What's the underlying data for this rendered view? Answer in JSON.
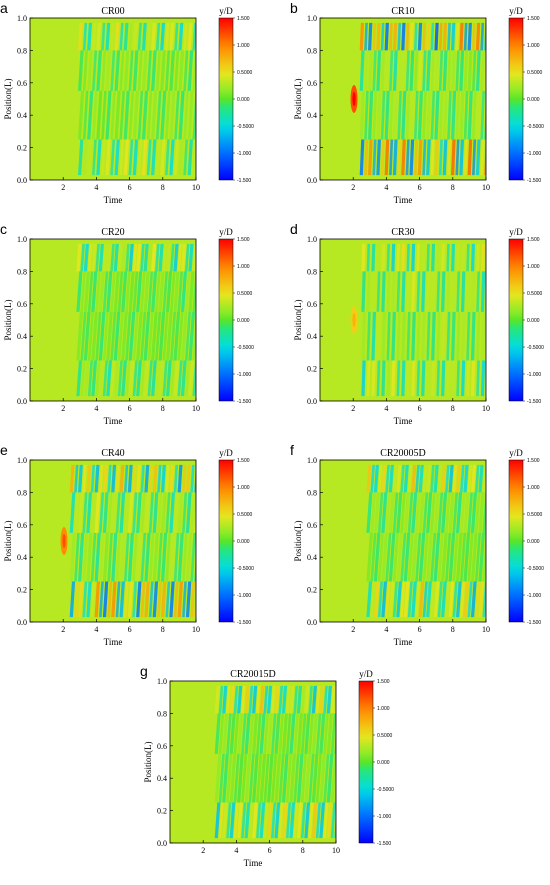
{
  "chart_data": [
    {
      "type": "heatmap",
      "panel_label": "a",
      "title": "CR00",
      "xlabel": "Time",
      "ylabel": "Position(L)",
      "x_ticks": [
        "2",
        "4",
        "6",
        "8",
        "10"
      ],
      "y_ticks": [
        "0.0",
        "0.2",
        "0.4",
        "0.6",
        "0.8",
        "1.0"
      ],
      "xlim": [
        0,
        10
      ],
      "ylim": [
        0,
        1
      ],
      "colorbar": {
        "title": "y/D",
        "ticks": [
          "1.500",
          "1.000",
          "0.5000",
          "0.000",
          "-0.5000",
          "-1.000",
          "-1.500"
        ],
        "range": [
          -1.5,
          1.5
        ]
      },
      "pattern": {
        "onset": 3.0,
        "period": 0.55,
        "amp_top": 0.55,
        "amp_bottom": 0.45,
        "amp_mid": 0.15,
        "slant": 0.6,
        "stripes": 16,
        "early_blob": 0
      }
    },
    {
      "type": "heatmap",
      "panel_label": "b",
      "title": "CR10",
      "xlabel": "Time",
      "ylabel": "Position(L)",
      "x_ticks": [
        "2",
        "4",
        "6",
        "8",
        "10"
      ],
      "y_ticks": [
        "0.0",
        "0.2",
        "0.4",
        "0.6",
        "0.8",
        "1.0"
      ],
      "xlim": [
        0,
        10
      ],
      "ylim": [
        0,
        1
      ],
      "colorbar": {
        "title": "y/D",
        "ticks": [
          "1.500",
          "1.000",
          "0.5000",
          "0.000",
          "-0.5000",
          "-1.000",
          "-1.500"
        ],
        "range": [
          -1.5,
          1.5
        ]
      },
      "pattern": {
        "onset": 2.5,
        "period": 0.5,
        "amp_top": 0.95,
        "amp_bottom": 0.95,
        "amp_mid": 0.3,
        "slant": 0.4,
        "stripes": 17,
        "early_blob": 1.0
      }
    },
    {
      "type": "heatmap",
      "panel_label": "c",
      "title": "CR20",
      "xlabel": "Time",
      "ylabel": "Position(L)",
      "x_ticks": [
        "2",
        "4",
        "6",
        "8",
        "10"
      ],
      "y_ticks": [
        "0.0",
        "0.2",
        "0.4",
        "0.6",
        "0.8",
        "1.0"
      ],
      "xlim": [
        0,
        10
      ],
      "ylim": [
        0,
        1
      ],
      "colorbar": {
        "title": "y/D",
        "ticks": [
          "1.500",
          "1.000",
          "0.5000",
          "0.000",
          "-0.5000",
          "-1.000",
          "-1.500"
        ],
        "range": [
          -1.5,
          1.5
        ]
      },
      "pattern": {
        "onset": 2.9,
        "period": 0.45,
        "amp_top": 0.45,
        "amp_bottom": 0.35,
        "amp_mid": 0.15,
        "slant": 0.7,
        "stripes": 19,
        "early_blob": 0
      }
    },
    {
      "type": "heatmap",
      "panel_label": "d",
      "title": "CR30",
      "xlabel": "Time",
      "ylabel": "Position(L)",
      "x_ticks": [
        "2",
        "4",
        "6",
        "8",
        "10"
      ],
      "y_ticks": [
        "0.0",
        "0.2",
        "0.4",
        "0.6",
        "0.8",
        "1.0"
      ],
      "xlim": [
        0,
        10
      ],
      "ylim": [
        0,
        1
      ],
      "colorbar": {
        "title": "y/D",
        "ticks": [
          "1.500",
          "1.000",
          "0.5000",
          "0.000",
          "-0.5000",
          "-1.000",
          "-1.500"
        ],
        "range": [
          -1.5,
          1.5
        ]
      },
      "pattern": {
        "onset": 2.6,
        "period": 0.6,
        "amp_top": 0.45,
        "amp_bottom": 0.45,
        "amp_mid": 0.35,
        "slant": 0.3,
        "stripes": 14,
        "early_blob": 0.5
      }
    },
    {
      "type": "heatmap",
      "panel_label": "e",
      "title": "CR40",
      "xlabel": "Time",
      "ylabel": "Position(L)",
      "x_ticks": [
        "2",
        "4",
        "6",
        "8",
        "10"
      ],
      "y_ticks": [
        "0.0",
        "0.2",
        "0.4",
        "0.6",
        "0.8",
        "1.0"
      ],
      "xlim": [
        0,
        10
      ],
      "ylim": [
        0,
        1
      ],
      "colorbar": {
        "title": "y/D",
        "ticks": [
          "1.500",
          "1.000",
          "0.5000",
          "0.000",
          "-0.5000",
          "-1.000",
          "-1.500"
        ],
        "range": [
          -1.5,
          1.5
        ]
      },
      "pattern": {
        "onset": 2.5,
        "period": 0.5,
        "amp_top": 0.7,
        "amp_bottom": 0.8,
        "amp_mid": 0.35,
        "slant": 0.6,
        "stripes": 17,
        "early_blob": 0.8
      }
    },
    {
      "type": "heatmap",
      "panel_label": "f",
      "title": "CR20005D",
      "xlabel": "Time",
      "ylabel": "Position(L)",
      "x_ticks": [
        "2",
        "4",
        "6",
        "8",
        "10"
      ],
      "y_ticks": [
        "0.0",
        "0.2",
        "0.4",
        "0.6",
        "0.8",
        "1.0"
      ],
      "xlim": [
        0,
        10
      ],
      "ylim": [
        0,
        1
      ],
      "colorbar": {
        "title": "y/D",
        "ticks": [
          "1.500",
          "1.000",
          "0.5000",
          "0.000",
          "-0.5000",
          "-1.000",
          "-1.500"
        ],
        "range": [
          -1.5,
          1.5
        ]
      },
      "pattern": {
        "onset": 2.9,
        "period": 0.45,
        "amp_top": 0.6,
        "amp_bottom": 0.6,
        "amp_mid": 0.2,
        "slant": 0.7,
        "stripes": 19,
        "early_blob": 0
      }
    },
    {
      "type": "heatmap",
      "panel_label": "g",
      "title": "CR20015D",
      "xlabel": "Time",
      "ylabel": "Position(L)",
      "x_ticks": [
        "2",
        "4",
        "6",
        "8",
        "10"
      ],
      "y_ticks": [
        "0.0",
        "0.2",
        "0.4",
        "0.6",
        "0.8",
        "1.0"
      ],
      "xlim": [
        0,
        10
      ],
      "ylim": [
        0,
        1
      ],
      "colorbar": {
        "title": "y/D",
        "ticks": [
          "1.500",
          "1.000",
          "0.5000",
          "0.000",
          "-0.5000",
          "-1.000",
          "-1.500"
        ],
        "range": [
          -1.5,
          1.5
        ]
      },
      "pattern": {
        "onset": 2.8,
        "period": 0.45,
        "amp_top": 0.55,
        "amp_bottom": 0.55,
        "amp_mid": 0.15,
        "slant": 0.7,
        "stripes": 19,
        "early_blob": 0
      }
    }
  ]
}
